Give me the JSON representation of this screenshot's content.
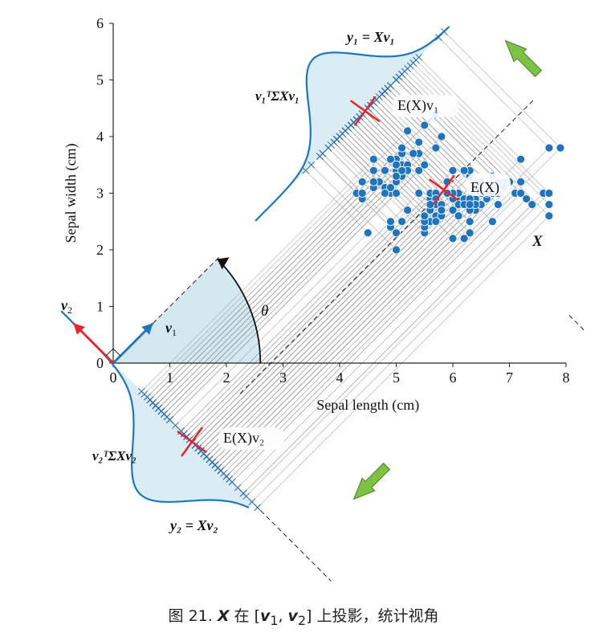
{
  "chart_data": {
    "type": "scatter",
    "xlabel": "Sepal length (cm)",
    "ylabel": "Sepal width (cm)",
    "xlim": [
      0,
      8
    ],
    "ylim": [
      0,
      6
    ],
    "x_ticks": [
      "0",
      "1",
      "2",
      "3",
      "4",
      "5",
      "6",
      "7",
      "8"
    ],
    "y_ticks": [
      "0",
      "1",
      "2",
      "3",
      "4",
      "5",
      "6"
    ],
    "grid": false,
    "projection_angle_deg": 45,
    "mean": [
      5.84,
      3.06
    ],
    "points": [
      [
        5.1,
        3.5
      ],
      [
        4.9,
        3.0
      ],
      [
        4.7,
        3.2
      ],
      [
        4.6,
        3.1
      ],
      [
        5.0,
        3.6
      ],
      [
        5.4,
        3.9
      ],
      [
        4.6,
        3.4
      ],
      [
        5.0,
        3.4
      ],
      [
        4.4,
        2.9
      ],
      [
        4.9,
        3.1
      ],
      [
        5.4,
        3.7
      ],
      [
        4.8,
        3.4
      ],
      [
        4.8,
        3.0
      ],
      [
        4.3,
        3.0
      ],
      [
        5.8,
        4.0
      ],
      [
        5.7,
        4.4
      ],
      [
        5.4,
        3.9
      ],
      [
        5.1,
        3.5
      ],
      [
        5.7,
        3.8
      ],
      [
        5.1,
        3.8
      ],
      [
        5.4,
        3.4
      ],
      [
        5.1,
        3.7
      ],
      [
        4.6,
        3.6
      ],
      [
        5.1,
        3.3
      ],
      [
        4.8,
        3.4
      ],
      [
        5.0,
        3.0
      ],
      [
        5.0,
        3.4
      ],
      [
        5.2,
        3.5
      ],
      [
        5.2,
        3.4
      ],
      [
        4.7,
        3.2
      ],
      [
        4.8,
        3.1
      ],
      [
        5.4,
        3.4
      ],
      [
        5.2,
        4.1
      ],
      [
        5.5,
        4.2
      ],
      [
        4.9,
        3.1
      ],
      [
        5.0,
        3.2
      ],
      [
        5.5,
        3.5
      ],
      [
        4.9,
        3.6
      ],
      [
        4.4,
        3.0
      ],
      [
        5.1,
        3.4
      ],
      [
        5.0,
        3.5
      ],
      [
        4.5,
        2.3
      ],
      [
        4.4,
        3.2
      ],
      [
        5.0,
        3.5
      ],
      [
        5.1,
        3.8
      ],
      [
        4.8,
        3.0
      ],
      [
        5.1,
        3.8
      ],
      [
        4.6,
        3.2
      ],
      [
        5.3,
        3.7
      ],
      [
        5.0,
        3.3
      ],
      [
        7.0,
        3.2
      ],
      [
        6.4,
        3.2
      ],
      [
        6.9,
        3.1
      ],
      [
        5.5,
        2.3
      ],
      [
        6.5,
        2.8
      ],
      [
        5.7,
        2.8
      ],
      [
        6.3,
        3.3
      ],
      [
        4.9,
        2.4
      ],
      [
        6.6,
        2.9
      ],
      [
        5.2,
        2.7
      ],
      [
        5.0,
        2.0
      ],
      [
        5.9,
        3.0
      ],
      [
        6.0,
        2.2
      ],
      [
        6.1,
        2.9
      ],
      [
        5.6,
        2.9
      ],
      [
        6.7,
        3.1
      ],
      [
        5.6,
        3.0
      ],
      [
        5.8,
        2.7
      ],
      [
        6.2,
        2.2
      ],
      [
        5.6,
        2.5
      ],
      [
        5.9,
        3.2
      ],
      [
        6.1,
        2.8
      ],
      [
        6.3,
        2.5
      ],
      [
        6.1,
        2.8
      ],
      [
        6.4,
        2.9
      ],
      [
        6.6,
        3.0
      ],
      [
        6.8,
        2.8
      ],
      [
        6.7,
        3.0
      ],
      [
        6.0,
        2.9
      ],
      [
        5.7,
        2.6
      ],
      [
        5.5,
        2.4
      ],
      [
        5.5,
        2.4
      ],
      [
        5.8,
        2.7
      ],
      [
        6.0,
        2.7
      ],
      [
        5.4,
        3.0
      ],
      [
        6.0,
        3.4
      ],
      [
        6.7,
        3.1
      ],
      [
        6.3,
        2.3
      ],
      [
        5.6,
        3.0
      ],
      [
        5.5,
        2.5
      ],
      [
        5.5,
        2.6
      ],
      [
        6.1,
        3.0
      ],
      [
        5.8,
        2.6
      ],
      [
        5.0,
        2.3
      ],
      [
        5.6,
        2.7
      ],
      [
        5.7,
        3.0
      ],
      [
        5.7,
        2.9
      ],
      [
        6.2,
        2.9
      ],
      [
        5.1,
        2.5
      ],
      [
        5.7,
        2.8
      ],
      [
        6.3,
        3.3
      ],
      [
        5.8,
        2.7
      ],
      [
        7.1,
        3.0
      ],
      [
        6.3,
        2.9
      ],
      [
        6.5,
        3.0
      ],
      [
        7.6,
        3.0
      ],
      [
        4.9,
        2.5
      ],
      [
        7.3,
        2.9
      ],
      [
        6.7,
        2.5
      ],
      [
        7.2,
        3.6
      ],
      [
        6.5,
        3.2
      ],
      [
        6.4,
        2.7
      ],
      [
        6.8,
        3.0
      ],
      [
        5.7,
        2.5
      ],
      [
        5.8,
        2.8
      ],
      [
        6.4,
        3.2
      ],
      [
        6.5,
        3.0
      ],
      [
        7.7,
        3.8
      ],
      [
        7.7,
        2.6
      ],
      [
        6.0,
        2.2
      ],
      [
        6.9,
        3.2
      ],
      [
        5.6,
        2.8
      ],
      [
        7.7,
        2.8
      ],
      [
        6.3,
        2.7
      ],
      [
        6.7,
        3.3
      ],
      [
        7.2,
        3.2
      ],
      [
        6.2,
        2.8
      ],
      [
        6.1,
        3.0
      ],
      [
        6.4,
        2.8
      ],
      [
        7.2,
        3.0
      ],
      [
        7.4,
        2.8
      ],
      [
        7.9,
        3.8
      ],
      [
        6.4,
        2.8
      ],
      [
        6.3,
        2.8
      ],
      [
        6.1,
        2.6
      ],
      [
        7.7,
        3.0
      ],
      [
        6.3,
        3.4
      ],
      [
        6.4,
        3.1
      ],
      [
        6.0,
        3.0
      ],
      [
        6.9,
        3.1
      ],
      [
        6.7,
        3.1
      ],
      [
        6.9,
        3.1
      ],
      [
        5.8,
        2.7
      ],
      [
        6.8,
        3.2
      ],
      [
        6.7,
        3.3
      ],
      [
        6.7,
        3.0
      ],
      [
        6.3,
        2.5
      ],
      [
        6.5,
        3.0
      ],
      [
        6.2,
        3.4
      ],
      [
        5.9,
        3.0
      ]
    ],
    "labels": {
      "y1": "y₁ = Xv₁",
      "y2": "y₂ = Xv₂",
      "var1": "v₁ᵀΣXv₁",
      "var2": "v₂ᵀΣXv₂",
      "mean_v1": "E(X)v₁",
      "mean_v2": "E(X)v₂",
      "mean": "E(X)",
      "X": "X",
      "v1": "v",
      "v2": "v",
      "theta": "θ"
    },
    "colors": {
      "points": "#1f74bf",
      "curve": "#1a78c2",
      "fill": "#cfe6f1",
      "red": "#e8252b",
      "green": "#7dc242",
      "proj_line": "#9a9a9a"
    }
  },
  "caption": {
    "prefix": "图 21. ",
    "X": "X",
    "mid": " 在 [",
    "v1": "v",
    "sub1": "1",
    "comma": ", ",
    "v2": "v",
    "sub2": "2",
    "suffix": "] 上投影，统计视角"
  }
}
